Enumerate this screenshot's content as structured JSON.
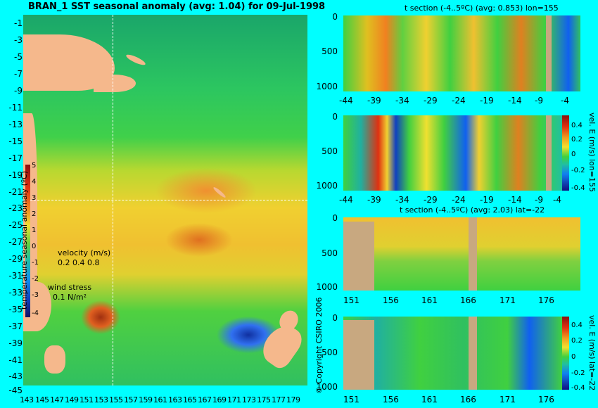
{
  "map": {
    "title": "BRAN_1  SST seasonal anomaly (avg: 1.04) for 09-Jul-1998",
    "lat_ticks": [
      "-1",
      "-3",
      "-5",
      "-7",
      "-9",
      "-11",
      "-13",
      "-15",
      "-17",
      "-19",
      "-21",
      "-23",
      "-25",
      "-27",
      "-29",
      "-31",
      "-33",
      "-35",
      "-37",
      "-39",
      "-41",
      "-43",
      "-45"
    ],
    "lon_ticks": [
      "143",
      "145",
      "147",
      "149",
      "151",
      "153",
      "155",
      "157",
      "159",
      "161",
      "163",
      "165",
      "167",
      "169",
      "171",
      "173",
      "175",
      "177",
      "179"
    ],
    "colorbar_ticks": [
      "5",
      "4",
      "3",
      "2",
      "1",
      "0",
      "-1",
      "-2",
      "-3",
      "-4"
    ],
    "colorbar_label": "temperature seasonal anomaly (ºC)",
    "velocity_label": "velocity (m/s)",
    "velocity_scale": "0.2 0.4 0.8",
    "wind_label": "wind stress",
    "wind_scale": "0.1 N/m²",
    "copyright": "© Copyright CSIRO 2006",
    "colors": {
      "land": "#f5b88c",
      "background": "#00ffff",
      "section_gap": "#c8a880"
    }
  },
  "panels": [
    {
      "title": "t section (-4..5ºC) (avg: 0.853) lon=155",
      "y_ticks": [
        "0",
        "500",
        "1000"
      ],
      "x_ticks": [
        "-44",
        "-39",
        "-34",
        "-29",
        "-24",
        "-19",
        "-14",
        "-9",
        "-4"
      ],
      "side_label": "",
      "bar_ticks": []
    },
    {
      "title": "",
      "y_ticks": [
        "0",
        "500",
        "1000"
      ],
      "x_ticks": [
        "-44",
        "-39",
        "-34",
        "-29",
        "-24",
        "-19",
        "-14",
        "-9",
        "-4"
      ],
      "side_label": "vel. E (m/s) lon=155",
      "bar_ticks": [
        "0.4",
        "0.2",
        "0",
        "-0.2",
        "-0.4"
      ]
    },
    {
      "title": "t section (-4..5ºC) (avg: 2.03) lat=-22",
      "y_ticks": [
        "0",
        "500",
        "1000"
      ],
      "x_ticks": [
        "151",
        "156",
        "161",
        "166",
        "171",
        "176"
      ],
      "side_label": "",
      "bar_ticks": []
    },
    {
      "title": "",
      "y_ticks": [
        "0",
        "500",
        "1000"
      ],
      "x_ticks": [
        "151",
        "156",
        "161",
        "166",
        "171",
        "176"
      ],
      "side_label": "vel. E (m/s) lat=-22",
      "bar_ticks": [
        "0.4",
        "0.2",
        "0",
        "-0.2",
        "-0.4"
      ]
    }
  ]
}
